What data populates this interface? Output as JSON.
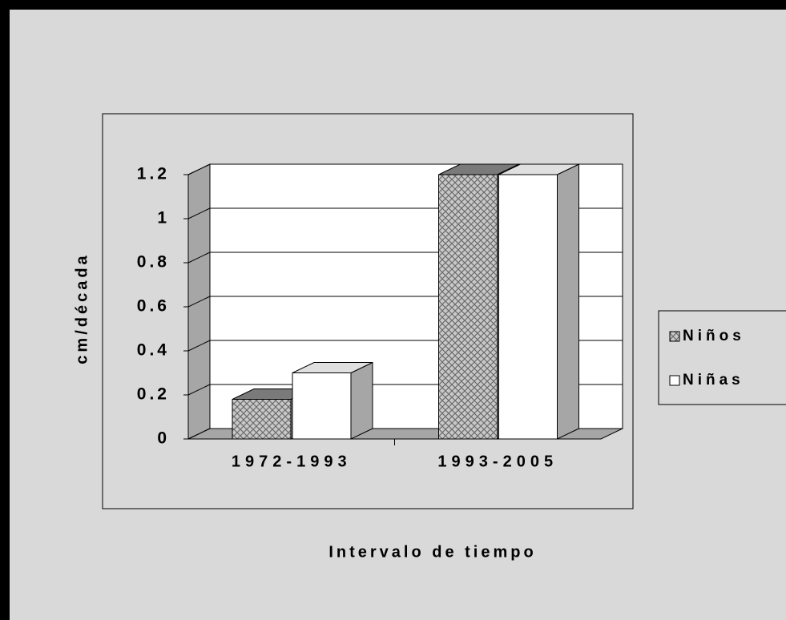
{
  "chart_data": {
    "type": "bar3d",
    "categories": [
      "1972-1993",
      "1993-2005"
    ],
    "series": [
      {
        "name": "Niños",
        "color": "#9a9a9a",
        "values": [
          0.18,
          1.2
        ]
      },
      {
        "name": "Niñas",
        "color": "#ffffff",
        "values": [
          0.3,
          1.2
        ]
      }
    ],
    "ylim": [
      0,
      1.2
    ],
    "yticks": [
      0,
      0.2,
      0.4,
      0.6,
      0.8,
      1,
      1.2
    ],
    "x_label": "Intervalo de tiempo",
    "y_label": "cm/década",
    "grid": true,
    "legend": "right"
  }
}
